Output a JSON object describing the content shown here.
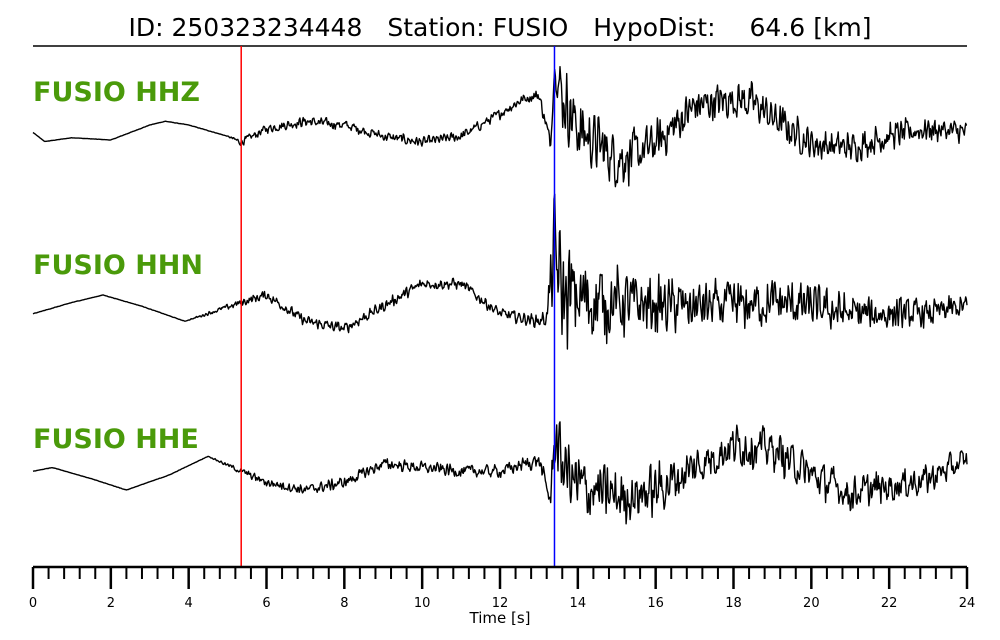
{
  "header": {
    "id_label": "ID:",
    "id_value": "250323234448",
    "station_label": "Station:",
    "station_value": "FUSIO",
    "hypodist_label": "HypoDist:",
    "hypodist_value": "64.6",
    "hypodist_unit": "[km]"
  },
  "colors": {
    "label_green": "#4a9a0a",
    "p_pick": "#ff0000",
    "s_pick": "#0000ff",
    "trace": "#000000"
  },
  "chart_data": {
    "type": "line",
    "xlabel": "Time [s]",
    "xlim": [
      0,
      24
    ],
    "major_ticks": [
      0,
      2,
      4,
      6,
      8,
      10,
      12,
      14,
      16,
      18,
      20,
      22,
      24
    ],
    "major_tick_labels": [
      "0",
      "2",
      "4",
      "6",
      "8",
      "10",
      "12",
      "14",
      "16",
      "18",
      "20",
      "22",
      "24"
    ],
    "minor_tick_step": 0.4,
    "picks": {
      "p_time": 5.35,
      "s_time": 13.4
    },
    "series": [
      {
        "name": "FUSIO HHZ",
        "t": [
          0,
          0.3,
          1,
          2,
          3,
          3.4,
          4,
          5,
          5.35,
          6,
          7,
          8,
          9,
          10,
          11,
          12,
          12.6,
          13,
          13.3,
          13.4,
          13.6,
          14,
          15,
          15.5,
          16,
          17,
          18,
          18.5,
          19,
          20,
          21,
          22,
          23,
          24
        ],
        "v": [
          0.1,
          -0.02,
          0.03,
          0.0,
          0.2,
          0.25,
          0.2,
          0.05,
          -0.03,
          0.15,
          0.25,
          0.2,
          0.05,
          -0.03,
          0.05,
          0.35,
          0.55,
          0.6,
          -0.05,
          0.95,
          0.6,
          0.15,
          -0.25,
          -0.2,
          -0.05,
          0.45,
          0.55,
          0.5,
          0.3,
          -0.05,
          -0.1,
          0.05,
          0.15,
          0.1
        ],
        "noise": [
          0.002,
          0.002,
          0.002,
          0.003,
          0.003,
          0.003,
          0.003,
          0.003,
          0.06,
          0.07,
          0.08,
          0.08,
          0.08,
          0.08,
          0.08,
          0.08,
          0.08,
          0.1,
          0.12,
          0.12,
          0.6,
          0.5,
          0.45,
          0.4,
          0.35,
          0.3,
          0.3,
          0.3,
          0.28,
          0.26,
          0.24,
          0.22,
          0.2,
          0.18
        ]
      },
      {
        "name": "FUSIO HHN",
        "t": [
          0,
          1,
          1.8,
          2.8,
          3.9,
          5.35,
          6,
          7,
          8,
          9,
          10,
          11,
          12,
          13,
          13.2,
          13.4,
          13.6,
          14,
          15,
          16,
          17,
          18,
          19,
          20,
          21,
          22,
          23,
          24
        ],
        "v": [
          -0.05,
          0.1,
          0.2,
          0.05,
          -0.15,
          0.1,
          0.2,
          -0.15,
          -0.25,
          0.05,
          0.35,
          0.35,
          -0.05,
          -0.15,
          -0.1,
          0.8,
          0.2,
          0.15,
          0.1,
          0.05,
          0.05,
          0.05,
          0.1,
          0.05,
          -0.05,
          -0.05,
          -0.05,
          0.05
        ],
        "noise": [
          0.003,
          0.003,
          0.003,
          0.003,
          0.003,
          0.06,
          0.08,
          0.08,
          0.09,
          0.09,
          0.09,
          0.09,
          0.09,
          0.1,
          0.14,
          0.9,
          0.9,
          0.75,
          0.55,
          0.45,
          0.4,
          0.4,
          0.38,
          0.34,
          0.3,
          0.26,
          0.22,
          0.2
        ]
      },
      {
        "name": "FUSIO HHE",
        "t": [
          0,
          0.5,
          1.5,
          2.4,
          3.5,
          4.5,
          5.35,
          6,
          7,
          8,
          9,
          10,
          11,
          12,
          13,
          13.3,
          13.4,
          13.6,
          14,
          15,
          16,
          17,
          18,
          19,
          20,
          21,
          22,
          23,
          24
        ],
        "v": [
          0.05,
          0.1,
          -0.05,
          -0.2,
          0.0,
          0.25,
          0.05,
          -0.1,
          -0.2,
          -0.1,
          0.15,
          0.1,
          0.05,
          0.05,
          0.2,
          -0.35,
          0.55,
          0.15,
          -0.15,
          -0.3,
          -0.2,
          0.1,
          0.4,
          0.35,
          0.0,
          -0.25,
          -0.15,
          -0.05,
          0.2
        ],
        "noise": [
          0.003,
          0.003,
          0.003,
          0.003,
          0.003,
          0.003,
          0.05,
          0.07,
          0.08,
          0.09,
          0.09,
          0.09,
          0.1,
          0.1,
          0.12,
          0.15,
          0.5,
          0.55,
          0.55,
          0.45,
          0.4,
          0.36,
          0.34,
          0.32,
          0.3,
          0.28,
          0.26,
          0.24,
          0.22
        ]
      }
    ]
  }
}
